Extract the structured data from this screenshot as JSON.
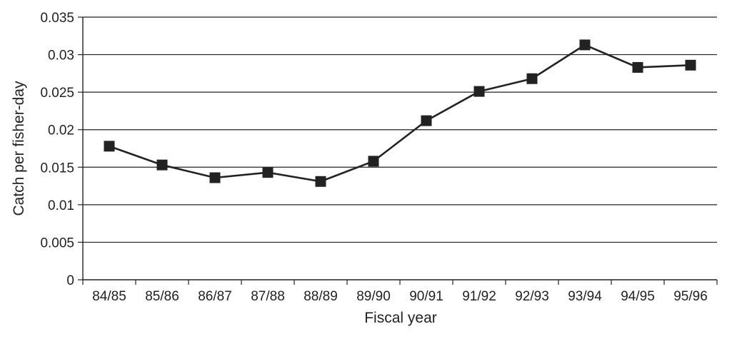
{
  "chart_data": {
    "type": "line",
    "title": "",
    "xlabel": "Fiscal year",
    "ylabel": "Catch per fisher-day",
    "categories": [
      "84/85",
      "85/86",
      "86/87",
      "87/88",
      "88/89",
      "89/90",
      "90/91",
      "91/92",
      "92/93",
      "93/94",
      "94/95",
      "95/96"
    ],
    "series": [
      {
        "values": [
          0.0178,
          0.0153,
          0.0136,
          0.0143,
          0.0131,
          0.0158,
          0.0212,
          0.0251,
          0.0268,
          0.0313,
          0.0283,
          0.0286
        ],
        "color": "#222222",
        "marker": "square"
      }
    ],
    "ylim": [
      0,
      0.035
    ],
    "yticks": [
      "0",
      "0.005",
      "0.01",
      "0.015",
      "0.02",
      "0.025",
      "0.03",
      "0.035"
    ],
    "grid": "horizontal",
    "legend": "none"
  }
}
